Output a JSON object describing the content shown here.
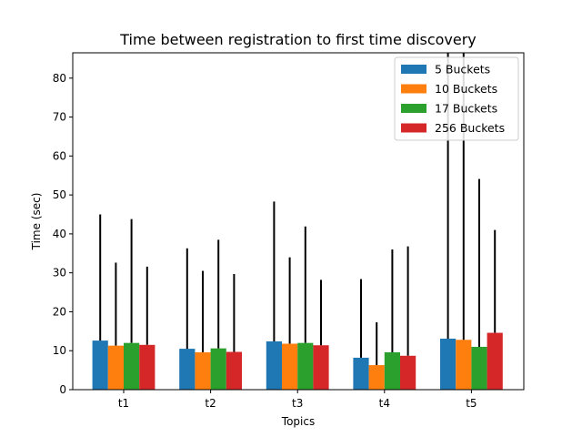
{
  "chart_data": {
    "type": "bar",
    "title": "Time between registration to first time discovery",
    "xlabel": "Topics",
    "ylabel": "Time (sec)",
    "categories": [
      "t1",
      "t2",
      "t3",
      "t4",
      "t5"
    ],
    "ylim": [
      0,
      86.5
    ],
    "yticks": [
      0,
      10,
      20,
      30,
      40,
      50,
      60,
      70,
      80
    ],
    "grid": false,
    "legend_position": "top-right",
    "series": [
      {
        "name": "5 Buckets",
        "color": "#1f77b4",
        "values": [
          12.6,
          10.5,
          12.4,
          8.2,
          13.1
        ],
        "err_upper": [
          45.0,
          36.3,
          48.3,
          28.4,
          87.0
        ]
      },
      {
        "name": "10 Buckets",
        "color": "#ff7f0e",
        "values": [
          11.3,
          9.6,
          11.8,
          6.3,
          12.8
        ],
        "err_upper": [
          32.6,
          30.5,
          34.0,
          17.3,
          87.0
        ]
      },
      {
        "name": "17 Buckets",
        "color": "#2ca02c",
        "values": [
          12.0,
          10.6,
          12.0,
          9.6,
          11.0
        ],
        "err_upper": [
          43.8,
          38.5,
          41.9,
          36.0,
          54.1
        ]
      },
      {
        "name": "256 Buckets",
        "color": "#d62728",
        "values": [
          11.5,
          9.7,
          11.4,
          8.7,
          14.6
        ],
        "err_upper": [
          31.6,
          29.7,
          28.2,
          36.8,
          41.0
        ]
      }
    ]
  }
}
